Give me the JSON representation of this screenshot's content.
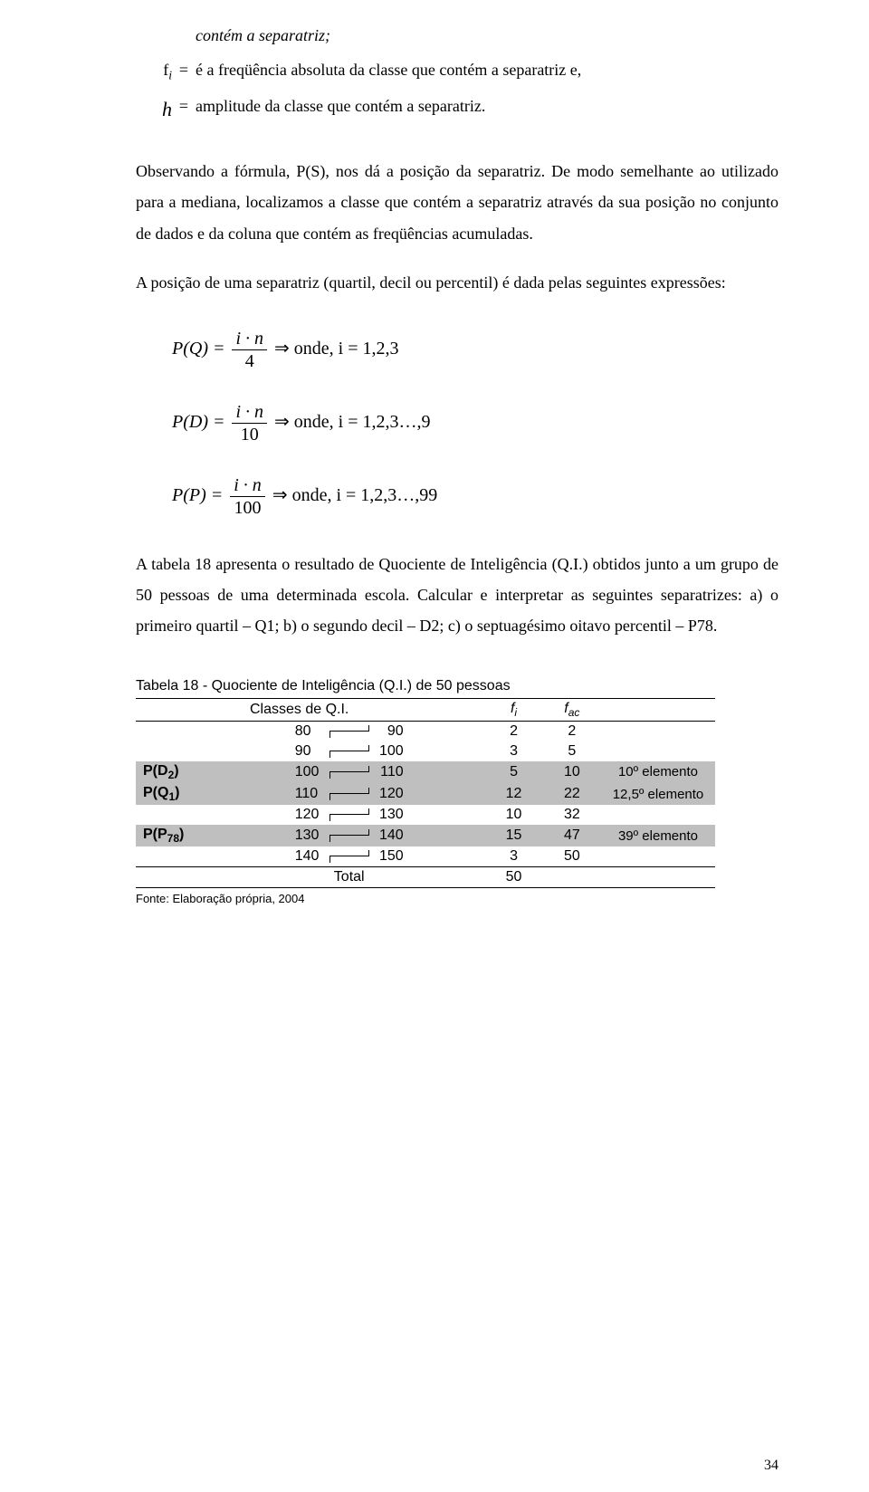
{
  "defs": {
    "line0": "contém a separatriz;",
    "fi_sym": "fᵢ",
    "eq": "=",
    "fi_txt": "é a freqüência absoluta da classe que contém a separatriz e,",
    "h_sym": "h",
    "h_txt": "amplitude da classe que contém a separatriz."
  },
  "para1": "Observando a fórmula, P(S), nos dá a posição da separatriz.",
  "para1b": "De modo semelhante ao utilizado para a mediana, localizamos a classe que contém a separatriz através da sua posição no conjunto de dados e da coluna que contém as freqüências acumuladas.",
  "para2": "A posição de uma separatriz (quartil, decil ou percentil) é dada pelas seguintes expressões:",
  "formulas": {
    "q_left": "P(Q) =",
    "q_num": "i · n",
    "q_den": "4",
    "q_right": "⇒ onde, i = 1,2,3",
    "d_left": "P(D) =",
    "d_num": "i · n",
    "d_den": "10",
    "d_right": "⇒ onde, i = 1,2,3…,9",
    "p_left": "P(P) =",
    "p_num": "i · n",
    "p_den": "100",
    "p_right": "⇒ onde, i = 1,2,3…,99"
  },
  "para3": "A tabela 18 apresenta o resultado de Quociente de Inteligência (Q.I.) obtidos junto a um grupo de 50 pessoas de uma determinada escola. Calcular e interpretar as seguintes separatrizes: a) o primeiro quartil – Q1; b) o segundo decil – D2; c) o septuagésimo oitavo percentil – P78.",
  "table": {
    "title": "Tabela 18 - Quociente de Inteligência (Q.I.) de 50 pessoas",
    "headers": {
      "classes": "Classes de Q.I.",
      "fi": "fi",
      "fac": "fac"
    },
    "rows": [
      {
        "label": "",
        "lo": "80",
        "hi": "90",
        "fi": "2",
        "fac": "2",
        "annot": "",
        "hl": false
      },
      {
        "label": "",
        "lo": "90",
        "hi": "100",
        "fi": "3",
        "fac": "5",
        "annot": "",
        "hl": false
      },
      {
        "label": "P(D2)",
        "lo": "100",
        "hi": "110",
        "fi": "5",
        "fac": "10",
        "annot": "10º elemento",
        "hl": true
      },
      {
        "label": "P(Q1)",
        "lo": "110",
        "hi": "120",
        "fi": "12",
        "fac": "22",
        "annot": "12,5º elemento",
        "hl": true
      },
      {
        "label": "",
        "lo": "120",
        "hi": "130",
        "fi": "10",
        "fac": "32",
        "annot": "",
        "hl": false
      },
      {
        "label": "P(P78)",
        "lo": "130",
        "hi": "140",
        "fi": "15",
        "fac": "47",
        "annot": "39º elemento",
        "hl": true
      },
      {
        "label": "",
        "lo": "140",
        "hi": "150",
        "fi": "3",
        "fac": "50",
        "annot": "",
        "hl": false
      }
    ],
    "total_label": "Total",
    "total_fi": "50",
    "fonte": "Fonte: Elaboração própria, 2004"
  },
  "pagenum": "34"
}
